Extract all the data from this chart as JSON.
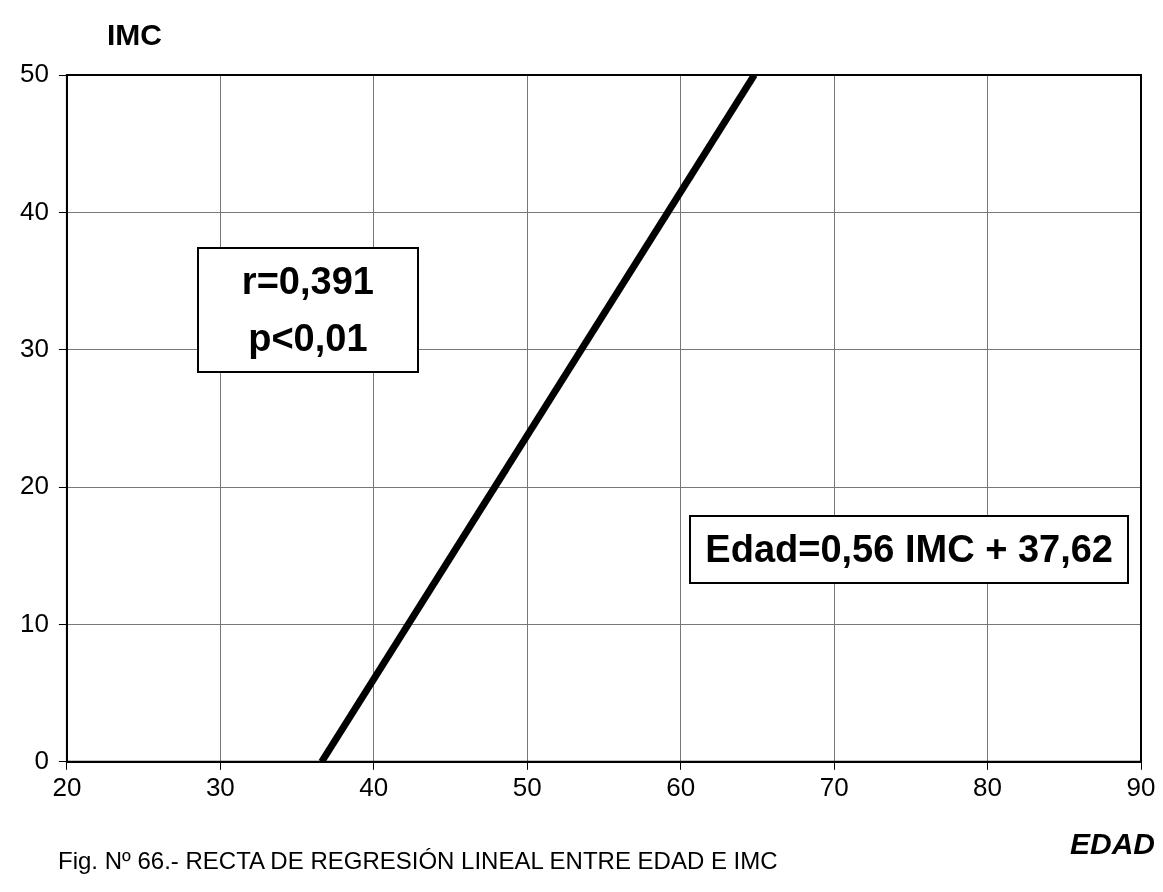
{
  "chart_data": {
    "type": "line",
    "ylabel": "IMC",
    "xlabel": "EDAD",
    "x": [
      36.6,
      64.8
    ],
    "values": [
      0,
      50
    ],
    "color": "#000000",
    "xlim": [
      20,
      90
    ],
    "xticks": [
      20,
      30,
      40,
      50,
      60,
      70,
      80,
      90
    ],
    "ylim": [
      0,
      50
    ],
    "yticks": [
      0,
      10,
      20,
      30,
      40,
      50
    ],
    "grid": true,
    "legend": false,
    "marker": "none",
    "line_style": "solid",
    "annotations": [
      "r=0,391",
      "p<0,01",
      "Edad=0,56 IMC + 37,62",
      "Fig. Nº 66.- RECTA DE REGRESIÓN LINEAL ENTRE EDAD E IMC"
    ]
  }
}
